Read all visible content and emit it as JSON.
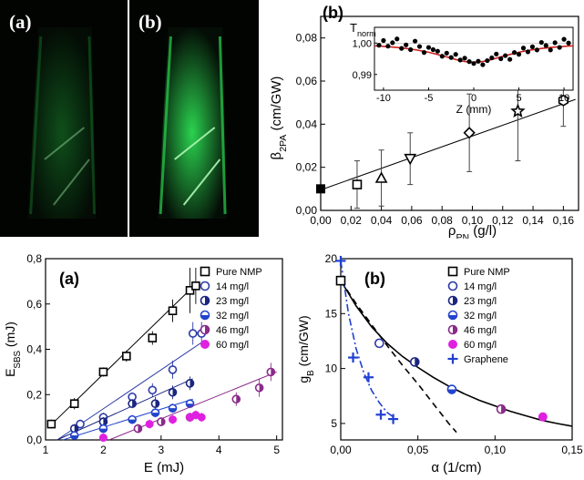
{
  "photos": [
    {
      "label": "(a)",
      "glow": "#1faa3a",
      "intensity": 0.45
    },
    {
      "label": "(b)",
      "glow": "#2bd24f",
      "intensity": 1.0
    }
  ],
  "chart_data": [
    {
      "id": "beta",
      "type": "scatter",
      "panel_label": "(b)",
      "xlabel": "ρ_PN (g/l)",
      "ylabel": "β_2PA (cm/GW)",
      "xlim": [
        0,
        0.17
      ],
      "ylim": [
        0,
        0.09
      ],
      "xticks": [
        "0,00",
        "0,02",
        "0,04",
        "0,06",
        "0,08",
        "0,10",
        "0,12",
        "0,14",
        "0,16"
      ],
      "xtick_values": [
        0,
        0.02,
        0.04,
        0.06,
        0.08,
        0.1,
        0.12,
        0.14,
        0.16
      ],
      "yticks": [
        "0,00",
        "0,02",
        "0,04",
        "0,06",
        "0,08"
      ],
      "ytick_values": [
        0,
        0.02,
        0.04,
        0.06,
        0.08
      ],
      "points": [
        {
          "x": 0.0,
          "y": 0.01,
          "err": 0,
          "marker": "square-filled"
        },
        {
          "x": 0.024,
          "y": 0.012,
          "err": 0.011,
          "marker": "square"
        },
        {
          "x": 0.04,
          "y": 0.015,
          "err": 0.013,
          "marker": "triangle-up"
        },
        {
          "x": 0.059,
          "y": 0.024,
          "err": 0.012,
          "marker": "triangle-down"
        },
        {
          "x": 0.098,
          "y": 0.036,
          "err": 0.018,
          "marker": "diamond"
        },
        {
          "x": 0.13,
          "y": 0.046,
          "err": 0.023,
          "marker": "star"
        },
        {
          "x": 0.16,
          "y": 0.051,
          "err": 0.012,
          "marker": "hexagon"
        }
      ],
      "fit": {
        "x": [
          0,
          0.168
        ],
        "y": [
          0.0095,
          0.0515
        ]
      },
      "inset": {
        "ylabel": "T_norm",
        "xlabel": "Z (mm)",
        "xlim": [
          -11,
          11
        ],
        "ylim": [
          0.985,
          1.005
        ],
        "xticks": [
          "-10",
          "-5",
          "0",
          "5",
          "10"
        ],
        "xtick_values": [
          -10,
          -5,
          0,
          5,
          10
        ],
        "yticks": [
          "0,99",
          "1,00"
        ],
        "ytick_values": [
          0.99,
          1.0
        ],
        "points": [
          [
            -10.5,
            0.9993
          ],
          [
            -10,
            1.0008
          ],
          [
            -9.5,
            0.999
          ],
          [
            -9,
            1.0001
          ],
          [
            -8.5,
            1.0013
          ],
          [
            -8,
            0.9983
          ],
          [
            -7.5,
            0.9994
          ],
          [
            -7,
            0.9979
          ],
          [
            -6.5,
            1.0006
          ],
          [
            -6,
            0.9989
          ],
          [
            -5.5,
            0.997
          ],
          [
            -5,
            0.9986
          ],
          [
            -4.5,
            0.9979
          ],
          [
            -4,
            0.9974
          ],
          [
            -3.5,
            0.9958
          ],
          [
            -3,
            0.9968
          ],
          [
            -2.5,
            0.9954
          ],
          [
            -2,
            0.9964
          ],
          [
            -1.5,
            0.9946
          ],
          [
            -1,
            0.9952
          ],
          [
            -0.5,
            0.9941
          ],
          [
            0,
            0.9935
          ],
          [
            0.5,
            0.9942
          ],
          [
            1,
            0.9931
          ],
          [
            1.5,
            0.9944
          ],
          [
            2,
            0.9953
          ],
          [
            2.5,
            0.9965
          ],
          [
            3,
            0.995
          ],
          [
            3.5,
            0.996
          ],
          [
            4,
            0.9948
          ],
          [
            4.5,
            0.997
          ],
          [
            5,
            0.9964
          ],
          [
            5.5,
            0.9984
          ],
          [
            6,
            0.9972
          ],
          [
            6.5,
            0.9988
          ],
          [
            7,
            0.9978
          ],
          [
            7.5,
            1.0002
          ],
          [
            8,
            0.9992
          ],
          [
            8.5,
            0.9978
          ],
          [
            9,
            1.0001
          ],
          [
            9.5,
            0.9986
          ],
          [
            10,
            1.0012
          ],
          [
            10.5,
            1.0
          ]
        ],
        "curve_depth": 0.0063,
        "curve_width": 5.0
      }
    },
    {
      "id": "esbs",
      "type": "scatter",
      "panel_label": "(a)",
      "xlabel": "E (mJ)",
      "ylabel": "E_SBS (mJ)",
      "xlim": [
        1,
        5.1
      ],
      "ylim": [
        0,
        0.8
      ],
      "xticks": [
        "1",
        "2",
        "3",
        "4",
        "5"
      ],
      "xtick_values": [
        1,
        2,
        3,
        4,
        5
      ],
      "yticks": [
        "0,0",
        "0,2",
        "0,4",
        "0,6",
        "0,8"
      ],
      "ytick_values": [
        0,
        0.2,
        0.4,
        0.6,
        0.8
      ],
      "legend_position": "top-right",
      "series": [
        {
          "name": "Pure NMP",
          "marker": "square",
          "color": "#000000",
          "points": [
            [
              1.1,
              0.07,
              0.02
            ],
            [
              1.5,
              0.16,
              0.025
            ],
            [
              2.0,
              0.3,
              0.02
            ],
            [
              2.4,
              0.37,
              0.025
            ],
            [
              2.85,
              0.45,
              0.03
            ],
            [
              3.2,
              0.57,
              0.05
            ],
            [
              3.5,
              0.66,
              0.1
            ],
            [
              3.6,
              0.68,
              0.08
            ]
          ],
          "fit": [
            [
              1.05,
              0.055
            ],
            [
              3.65,
              0.7
            ]
          ]
        },
        {
          "name": "14 mg/l",
          "marker": "circle",
          "color": "#2a3aa8",
          "points": [
            [
              1.6,
              0.07,
              0.02
            ],
            [
              2.0,
              0.1,
              0.02
            ],
            [
              2.5,
              0.19,
              0.02
            ],
            [
              2.85,
              0.22,
              0.03
            ],
            [
              3.2,
              0.31,
              0.04
            ],
            [
              3.55,
              0.47,
              0.05
            ],
            [
              3.7,
              0.47,
              0.05
            ]
          ],
          "fit": [
            [
              1.2,
              0.0
            ],
            [
              3.7,
              0.43
            ]
          ]
        },
        {
          "name": "23 mg/l",
          "marker": "circle-half-left",
          "color": "#1a2680",
          "points": [
            [
              1.5,
              0.05,
              0.02
            ],
            [
              2.0,
              0.08,
              0.02
            ],
            [
              2.5,
              0.16,
              0.02
            ],
            [
              2.9,
              0.16,
              0.03
            ],
            [
              3.2,
              0.21,
              0.03
            ],
            [
              3.5,
              0.25,
              0.03
            ]
          ],
          "fit": [
            [
              1.2,
              0.0
            ],
            [
              3.55,
              0.27
            ]
          ]
        },
        {
          "name": "32 mg/l",
          "marker": "circle-half-bottom",
          "color": "#2244cc",
          "points": [
            [
              1.5,
              0.02,
              0.01
            ],
            [
              2.0,
              0.05,
              0.02
            ],
            [
              2.5,
              0.09,
              0.02
            ],
            [
              2.9,
              0.12,
              0.02
            ],
            [
              3.2,
              0.14,
              0.02
            ],
            [
              3.5,
              0.16,
              0.02
            ]
          ],
          "fit": [
            [
              1.3,
              0.0
            ],
            [
              3.55,
              0.18
            ]
          ]
        },
        {
          "name": "46 mg/l",
          "marker": "circle-half-purple",
          "color": "#8a2a8a",
          "points": [
            [
              2.6,
              0.05,
              0.02
            ],
            [
              3.0,
              0.08,
              0.02
            ],
            [
              3.5,
              0.1,
              0.02
            ],
            [
              4.3,
              0.18,
              0.03
            ],
            [
              4.7,
              0.23,
              0.04
            ],
            [
              4.9,
              0.3,
              0.04
            ]
          ],
          "fit": [
            [
              2.1,
              0.0
            ],
            [
              5.0,
              0.3
            ]
          ]
        },
        {
          "name": "60 mg/l",
          "marker": "circle-filled",
          "color": "#e020e0",
          "points": [
            [
              2.0,
              0.01,
              0.01
            ],
            [
              2.8,
              0.07,
              0.02
            ],
            [
              3.2,
              0.09,
              0.02
            ],
            [
              3.5,
              0.1,
              0.02
            ],
            [
              3.6,
              0.11,
              0.02
            ],
            [
              3.7,
              0.1,
              0.02
            ]
          ],
          "fit": null
        }
      ]
    },
    {
      "id": "gain",
      "type": "scatter",
      "panel_label": "(b)",
      "xlabel": "α (1/cm)",
      "ylabel": "g_B (cm/GW)",
      "xlim": [
        0,
        0.15
      ],
      "ylim": [
        3.5,
        20
      ],
      "xticks": [
        "0,00",
        "0,05",
        "0,10",
        "0,15"
      ],
      "xtick_values": [
        0,
        0.05,
        0.1,
        0.15
      ],
      "yticks": [
        "5",
        "10",
        "15",
        "20"
      ],
      "ytick_values": [
        5,
        10,
        15,
        20
      ],
      "legend_position": "top-right",
      "series": [
        {
          "name": "Pure NMP",
          "marker": "square",
          "color": "#000000",
          "points": [
            [
              0.0,
              18.0
            ]
          ]
        },
        {
          "name": "14 mg/l",
          "marker": "circle",
          "color": "#2a3aa8",
          "points": [
            [
              0.025,
              12.3
            ]
          ]
        },
        {
          "name": "23 mg/l",
          "marker": "circle-half-left",
          "color": "#1a2680",
          "points": [
            [
              0.048,
              10.6
            ]
          ]
        },
        {
          "name": "32 mg/l",
          "marker": "circle-half-bottom",
          "color": "#2244cc",
          "points": [
            [
              0.072,
              8.1
            ]
          ]
        },
        {
          "name": "46 mg/l",
          "marker": "circle-half-purple",
          "color": "#8a2a8a",
          "points": [
            [
              0.104,
              6.3
            ]
          ]
        },
        {
          "name": "60 mg/l",
          "marker": "circle-filled",
          "color": "#e020e0",
          "points": [
            [
              0.131,
              5.6
            ]
          ]
        },
        {
          "name": "Graphene",
          "marker": "plus",
          "color": "#2040d0",
          "points": [
            [
              0.0,
              19.8
            ],
            [
              0.008,
              11.0
            ],
            [
              0.018,
              9.2
            ],
            [
              0.026,
              5.8
            ],
            [
              0.034,
              5.4
            ]
          ]
        }
      ],
      "curves": [
        {
          "style": "solid",
          "color": "#000000",
          "x": [
            0,
            0.01,
            0.02,
            0.03,
            0.04,
            0.05,
            0.06,
            0.07,
            0.08,
            0.09,
            0.1,
            0.11,
            0.12,
            0.13,
            0.14,
            0.15
          ],
          "y": [
            18.0,
            15.7,
            13.8,
            12.3,
            11.1,
            10.1,
            9.2,
            8.4,
            7.7,
            7.1,
            6.6,
            6.1,
            5.7,
            5.3,
            5.0,
            4.75
          ]
        },
        {
          "style": "dashed",
          "color": "#000000",
          "x": [
            0,
            0.01,
            0.02,
            0.03,
            0.04,
            0.05,
            0.06,
            0.07,
            0.075
          ],
          "y": [
            18.0,
            15.9,
            14.0,
            12.1,
            10.3,
            8.6,
            6.8,
            5.0,
            4.2
          ]
        },
        {
          "style": "dashdot",
          "color": "#2040d0",
          "x": [
            0,
            0.005,
            0.01,
            0.015,
            0.02,
            0.025,
            0.03,
            0.035
          ],
          "y": [
            19.8,
            15.0,
            11.8,
            9.6,
            8.0,
            6.9,
            6.0,
            5.5
          ]
        }
      ]
    }
  ]
}
